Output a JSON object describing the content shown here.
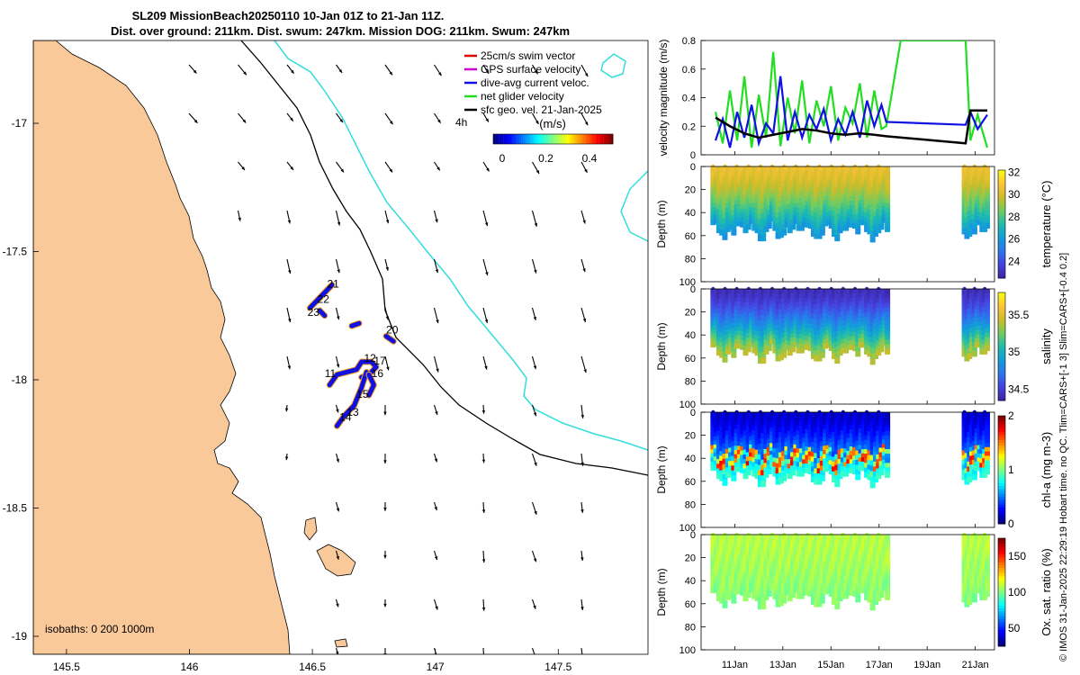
{
  "title": {
    "line1": "SL209 MissionBeach20250110 10-Jan 01Z to 21-Jan 11Z.",
    "line2": "Dist. over ground: 211km. Dist. swum: 247km. Mission DOG: 211km. Swum: 247km"
  },
  "footer_note": "© IMOS 31-Jan-2025 22:29:19 Hobart time. no QC. Tlim=CARS+[-1 3] Slim=CARS+[-0.4 0.2]",
  "colors": {
    "land": "#f9c99a",
    "coast": "#000000",
    "isobath200": "#000000",
    "isobath1000": "#33dddd",
    "track": "#1010e0",
    "vel_green": "#22dd22",
    "vel_blue": "#1010e0",
    "vel_black": "#000000"
  },
  "map": {
    "lon_ticks": [
      "145.5",
      "146",
      "146.5",
      "147",
      "147.5"
    ],
    "lat_ticks": [
      "-17",
      "-17.5",
      "-18",
      "-18.5",
      "-19"
    ],
    "legend": [
      {
        "label": "25cm/s swim vector",
        "color": "#dd0000"
      },
      {
        "label": "GPS surface velocity",
        "color": "#cc00cc"
      },
      {
        "label": "dive-avg current veloc.",
        "color": "#1010e0"
      },
      {
        "label": "net glider velocity",
        "color": "#22dd22"
      },
      {
        "label": "sfc geo. vel. 21-Jan-2025",
        "color": "#000000"
      }
    ],
    "legend_extra": "4h",
    "colorbar_title": "(m/s)",
    "colorbar_ticks": [
      "0",
      "0.2",
      "0.4"
    ],
    "isobath_note": "isobaths: 0   200  1000m",
    "day_labels": [
      {
        "text": "21",
        "lon": 146.56,
        "lat": -17.64
      },
      {
        "text": "22",
        "lon": 146.52,
        "lat": -17.7
      },
      {
        "text": "23",
        "lon": 146.48,
        "lat": -17.75
      },
      {
        "text": "20",
        "lon": 146.8,
        "lat": -17.82
      },
      {
        "text": "12",
        "lon": 146.71,
        "lat": -17.93
      },
      {
        "text": "17",
        "lon": 146.75,
        "lat": -17.94
      },
      {
        "text": "11",
        "lon": 146.55,
        "lat": -17.99
      },
      {
        "text": "16",
        "lon": 146.74,
        "lat": -17.99
      },
      {
        "text": "15",
        "lon": 146.68,
        "lat": -18.07
      },
      {
        "text": "13",
        "lon": 146.64,
        "lat": -18.14
      },
      {
        "text": "14",
        "lon": 146.61,
        "lat": -18.16
      }
    ]
  },
  "chart_data": [
    {
      "type": "line",
      "title": "",
      "ylabel": "velocity magnitude (m/s)",
      "ylim": [
        0,
        0.8
      ],
      "yticks": [
        "0",
        "0.2",
        "0.4",
        "0.6",
        "0.8"
      ],
      "xlim_days": [
        9.6,
        21.8
      ],
      "series": [
        {
          "name": "net glider velocity",
          "x": [
            10.2,
            10.5,
            10.8,
            11.1,
            11.4,
            11.7,
            12.0,
            12.3,
            12.6,
            12.9,
            13.2,
            13.5,
            13.8,
            14.1,
            14.4,
            14.7,
            15.0,
            15.3,
            15.6,
            15.9,
            16.2,
            16.5,
            16.8,
            17.1,
            17.3,
            17.9,
            20.6,
            20.8,
            21.1,
            21.5
          ],
          "y": [
            0.3,
            0.08,
            0.45,
            0.1,
            0.55,
            0.05,
            0.42,
            0.12,
            0.72,
            0.06,
            0.4,
            0.15,
            0.52,
            0.08,
            0.38,
            0.2,
            0.48,
            0.1,
            0.33,
            0.22,
            0.5,
            0.12,
            0.45,
            0.18,
            0.2,
            0.8,
            0.8,
            0.1,
            0.28,
            0.05
          ]
        },
        {
          "name": "dive-avg current veloc.",
          "x": [
            10.2,
            10.5,
            10.8,
            11.1,
            11.4,
            11.7,
            12.0,
            12.3,
            12.6,
            12.9,
            13.2,
            13.5,
            13.8,
            14.1,
            14.4,
            14.7,
            15.0,
            15.3,
            15.6,
            15.9,
            16.2,
            16.5,
            16.8,
            17.1,
            17.3,
            20.6,
            20.8,
            21.1,
            21.5
          ],
          "y": [
            0.1,
            0.25,
            0.05,
            0.3,
            0.12,
            0.35,
            0.08,
            0.22,
            0.15,
            0.55,
            0.1,
            0.3,
            0.12,
            0.28,
            0.18,
            0.32,
            0.1,
            0.25,
            0.14,
            0.3,
            0.12,
            0.38,
            0.2,
            0.35,
            0.23,
            0.21,
            0.3,
            0.18,
            0.28
          ]
        },
        {
          "name": "sfc geo. vel.",
          "x": [
            10.2,
            10.8,
            11.4,
            12.0,
            12.6,
            13.2,
            13.8,
            14.4,
            15.0,
            15.6,
            16.2,
            16.8,
            17.3,
            20.6,
            20.8,
            21.5
          ],
          "y": [
            0.26,
            0.2,
            0.15,
            0.12,
            0.14,
            0.16,
            0.18,
            0.17,
            0.15,
            0.14,
            0.15,
            0.14,
            0.13,
            0.08,
            0.31,
            0.31
          ]
        }
      ]
    },
    {
      "type": "heatmap",
      "ylabel": "Depth (m)",
      "colorbar_label": "temperature (°C)",
      "colorbar_ticks": [
        "24",
        "26",
        "28",
        "30",
        "32"
      ],
      "clim": [
        22.5,
        32.2
      ],
      "ylim": [
        100,
        0
      ],
      "yticks": [
        "0",
        "20",
        "40",
        "60",
        "80",
        "100"
      ],
      "profile_depth_m": [
        50,
        47,
        53,
        58,
        60,
        56,
        52,
        55,
        50,
        48,
        52,
        55,
        50,
        48,
        52,
        57,
        62,
        60,
        55
      ],
      "surface_value": 30.5,
      "bottom_value": 25.5
    },
    {
      "type": "heatmap",
      "ylabel": "Depth (m)",
      "colorbar_label": "salinity",
      "colorbar_ticks": [
        "34.5",
        "35",
        "35.5"
      ],
      "clim": [
        34.35,
        35.8
      ],
      "ylim": [
        100,
        0
      ],
      "yticks": [
        "0",
        "20",
        "40",
        "60",
        "80",
        "100"
      ],
      "profile_depth_m": [
        50,
        47,
        53,
        58,
        60,
        56,
        52,
        55,
        50,
        48,
        52,
        55,
        50,
        48,
        52,
        57,
        62,
        60,
        55
      ],
      "surface_value": 34.4,
      "bottom_value": 35.5
    },
    {
      "type": "heatmap",
      "ylabel": "Depth (m)",
      "colorbar_label": "chl-a (mg m-3)",
      "colorbar_ticks": [
        "0",
        "1",
        "2"
      ],
      "clim": [
        0,
        2
      ],
      "ylim": [
        100,
        0
      ],
      "yticks": [
        "0",
        "20",
        "40",
        "60",
        "80",
        "100"
      ],
      "profile_depth_m": [
        50,
        47,
        53,
        58,
        60,
        56,
        52,
        55,
        50,
        48,
        52,
        55,
        50,
        48,
        52,
        57,
        62,
        60,
        55
      ],
      "surface_value": 0.15,
      "bottom_value": 0.9
    },
    {
      "type": "heatmap",
      "ylabel": "Depth (m)",
      "colorbar_label": "Ox. sat. ratio (%)",
      "colorbar_ticks": [
        "50",
        "100",
        "150"
      ],
      "clim": [
        25,
        175
      ],
      "ylim": [
        100,
        0
      ],
      "yticks": [
        "0",
        "20",
        "40",
        "60",
        "80",
        "100"
      ],
      "profile_depth_m": [
        50,
        47,
        53,
        58,
        60,
        56,
        52,
        55,
        50,
        48,
        52,
        55,
        50,
        48,
        52,
        57,
        62,
        60,
        55
      ],
      "surface_value": 108,
      "bottom_value": 100
    }
  ],
  "time_axis": {
    "ticks": [
      11,
      13,
      15,
      17,
      19,
      21
    ],
    "labels": [
      "11Jan",
      "13Jan",
      "15Jan",
      "17Jan",
      "19Jan",
      "21Jan"
    ]
  }
}
